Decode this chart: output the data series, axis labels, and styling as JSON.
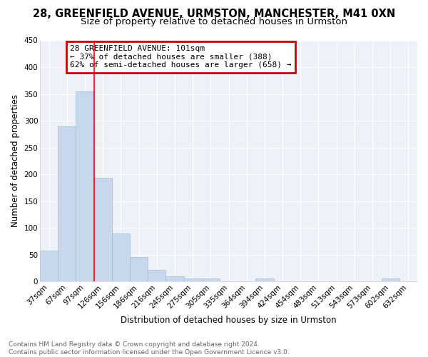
{
  "title1": "28, GREENFIELD AVENUE, URMSTON, MANCHESTER, M41 0XN",
  "title2": "Size of property relative to detached houses in Urmston",
  "xlabel": "Distribution of detached houses by size in Urmston",
  "ylabel": "Number of detached properties",
  "categories": [
    "37sqm",
    "67sqm",
    "97sqm",
    "126sqm",
    "156sqm",
    "186sqm",
    "216sqm",
    "245sqm",
    "275sqm",
    "305sqm",
    "335sqm",
    "364sqm",
    "394sqm",
    "424sqm",
    "454sqm",
    "483sqm",
    "513sqm",
    "543sqm",
    "573sqm",
    "602sqm",
    "632sqm"
  ],
  "values": [
    57,
    290,
    355,
    193,
    90,
    45,
    22,
    10,
    5,
    5,
    0,
    0,
    5,
    0,
    0,
    0,
    0,
    0,
    0,
    5,
    0
  ],
  "bar_color": "#c8d8ec",
  "bar_edge_color": "#a0bcd8",
  "red_line_index": 2,
  "annotation_title": "28 GREENFIELD AVENUE: 101sqm",
  "annotation_line1": "← 37% of detached houses are smaller (388)",
  "annotation_line2": "62% of semi-detached houses are larger (658) →",
  "annotation_box_color": "#cc0000",
  "ylim": [
    0,
    450
  ],
  "yticks": [
    0,
    50,
    100,
    150,
    200,
    250,
    300,
    350,
    400,
    450
  ],
  "footnote": "Contains HM Land Registry data © Crown copyright and database right 2024.\nContains public sector information licensed under the Open Government Licence v3.0.",
  "background_color": "#ffffff",
  "plot_bg_color": "#eef2f8",
  "grid_color": "#ffffff",
  "title1_fontsize": 10.5,
  "title2_fontsize": 9.5,
  "axis_label_fontsize": 8.5,
  "tick_fontsize": 7.5,
  "footnote_fontsize": 6.5
}
